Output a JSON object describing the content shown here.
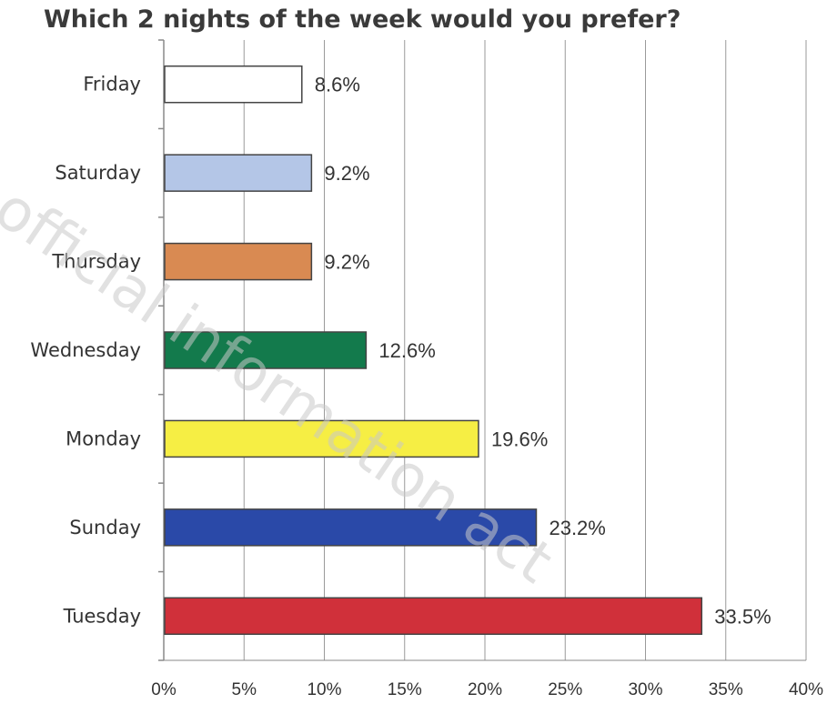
{
  "chart_data": {
    "type": "bar",
    "orientation": "horizontal",
    "title": "Which 2 nights of the week would you prefer?",
    "xlabel": "",
    "ylabel": "",
    "xlim": [
      0,
      40
    ],
    "x_ticks": [
      "0%",
      "5%",
      "10%",
      "15%",
      "20%",
      "25%",
      "30%",
      "35%",
      "40%"
    ],
    "grid": "vertical",
    "categories": [
      "Friday",
      "Saturday",
      "Thursday",
      "Wednesday",
      "Monday",
      "Sunday",
      "Tuesday"
    ],
    "values": [
      8.6,
      9.2,
      9.2,
      12.6,
      19.6,
      23.2,
      33.5
    ],
    "data_labels": [
      "8.6%",
      "9.2%",
      "9.2%",
      "12.6%",
      "19.6%",
      "23.2%",
      "33.5%"
    ],
    "colors": [
      "#ffffff",
      "#b4c6e7",
      "#d98a52",
      "#137a4c",
      "#f6ee44",
      "#2a49a8",
      "#d0303a"
    ]
  },
  "watermark": {
    "text": "official information act",
    "color": "#c8c8c8"
  }
}
